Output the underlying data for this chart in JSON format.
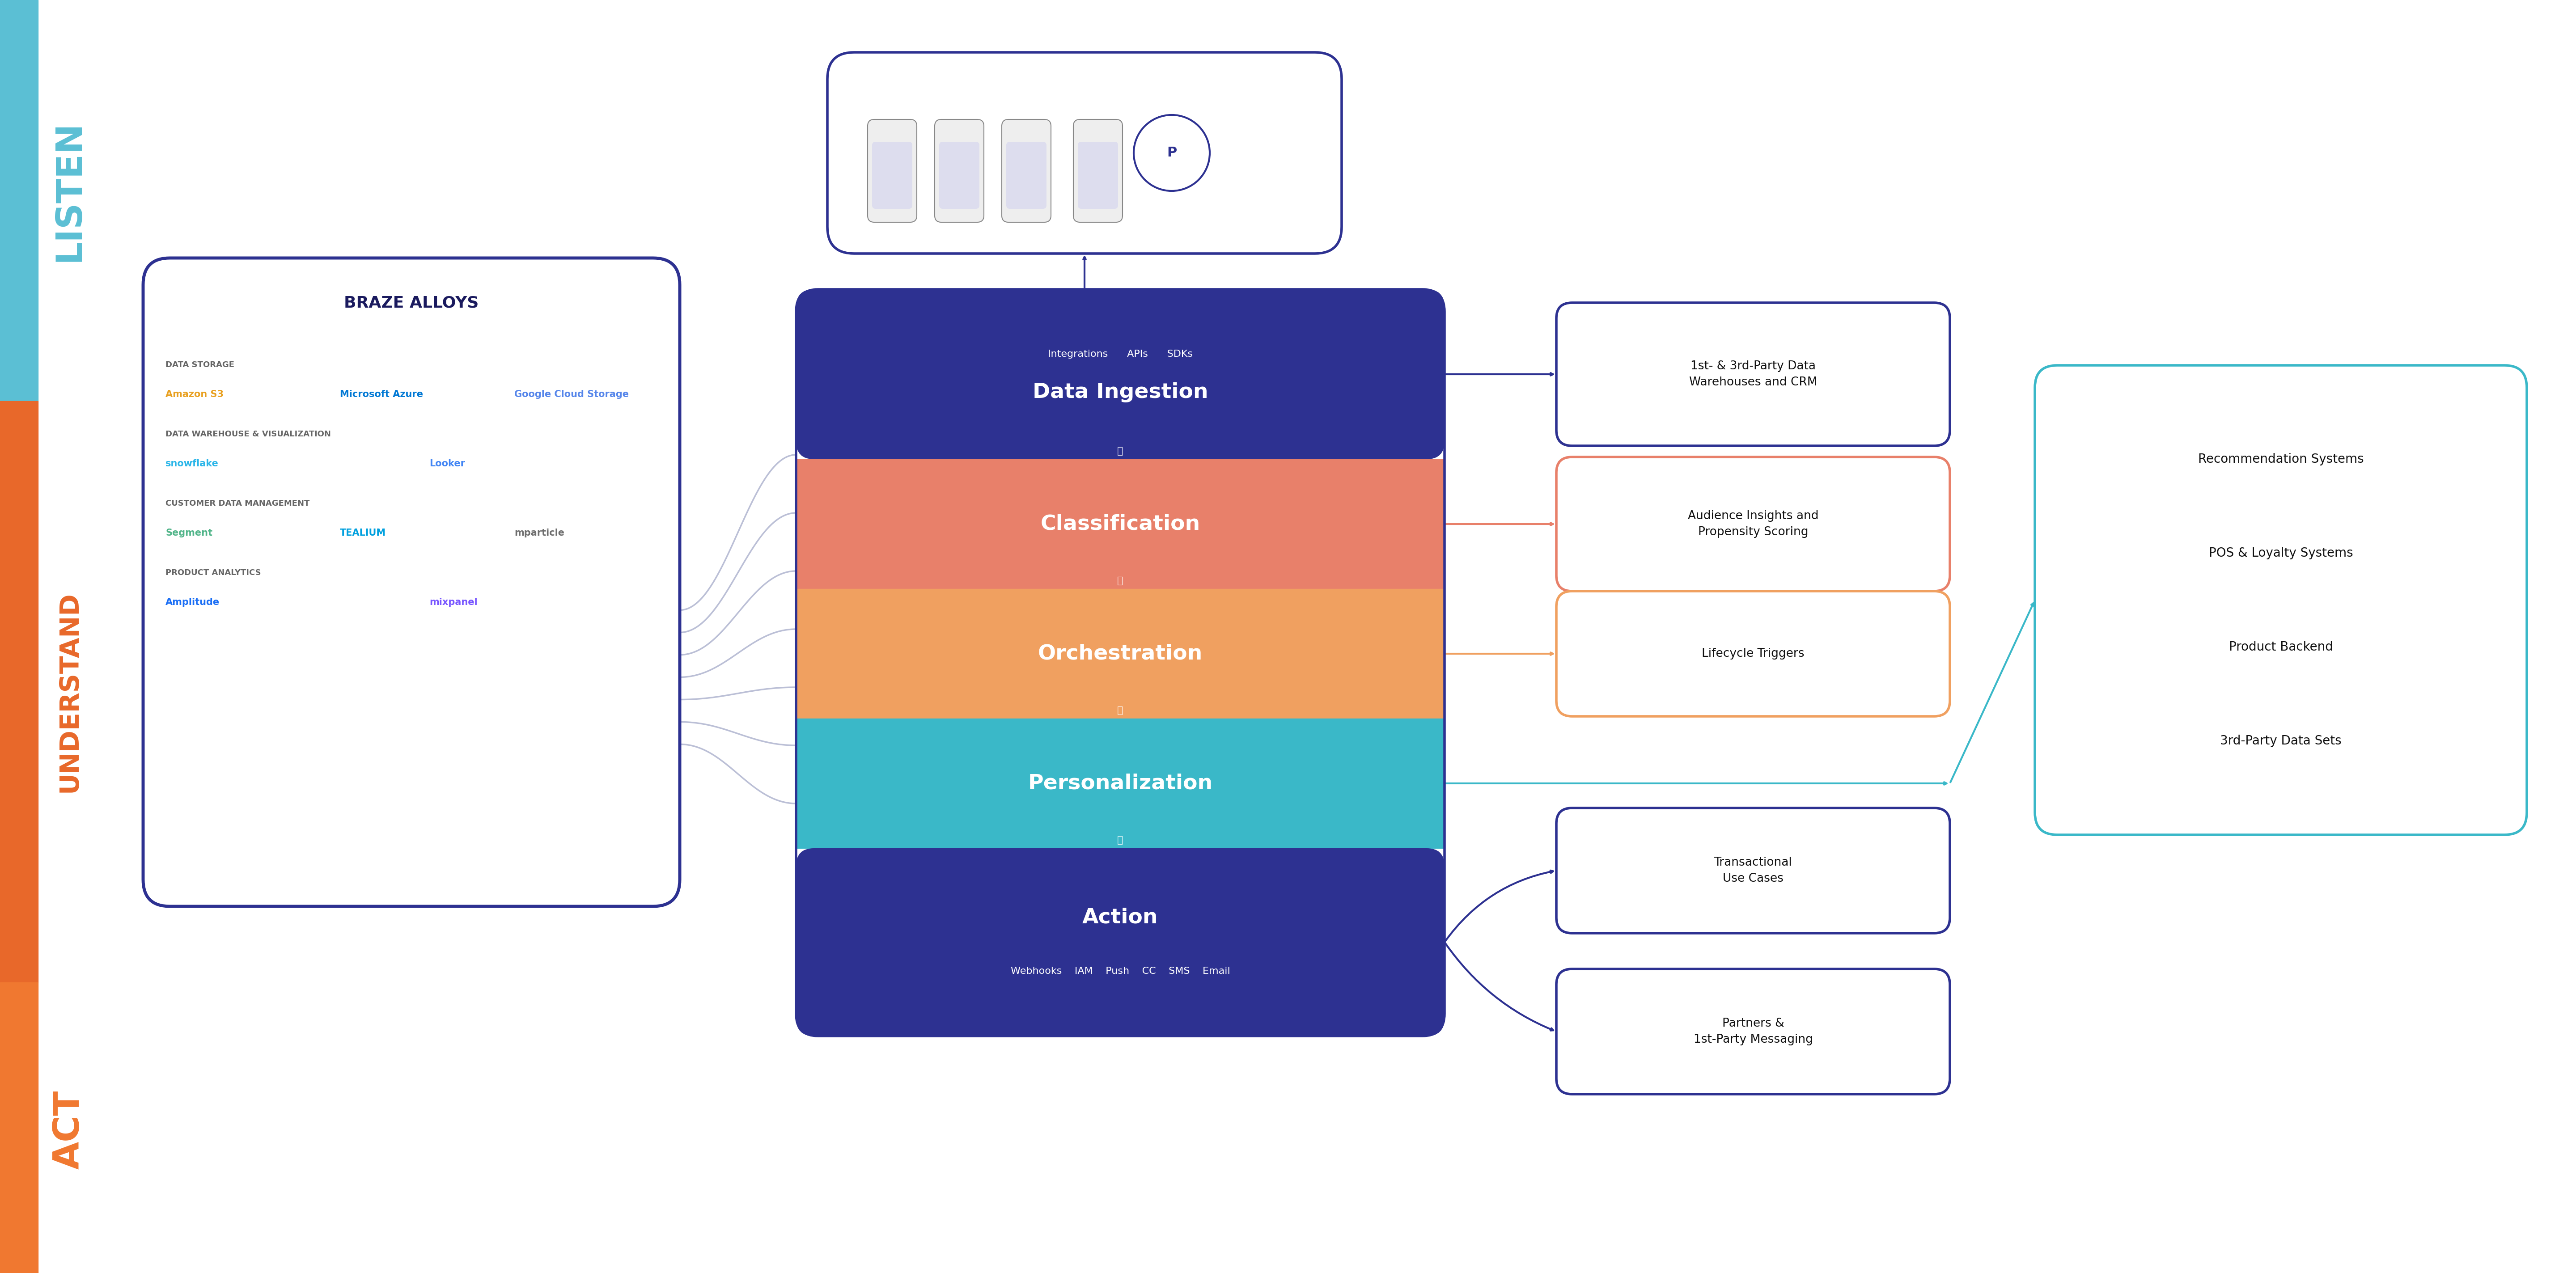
{
  "bg_color": "#ffffff",
  "listen_color": "#5bbfd4",
  "understand_color": "#e8682a",
  "act_color": "#f07830",
  "layer_colors": [
    "#2d3191",
    "#e8806a",
    "#f0a060",
    "#3ab8c8",
    "#2d3191"
  ],
  "layer_names": [
    "Data Ingestion",
    "Classification",
    "Orchestration",
    "Personalization",
    "Action"
  ],
  "layer_sublabels_top": [
    "Integrations      APIs      SDKs",
    "",
    "",
    "",
    ""
  ],
  "layer_sublabels_bottom": [
    "",
    "",
    "",
    "",
    "Webhooks    IAM    Push    CC    SMS    Email"
  ],
  "right_box_texts": [
    "1st- & 3rd-Party Data\nWarehouses and CRM",
    "Audience Insights and\nPropensity Scoring",
    "Lifecycle Triggers",
    "",
    "Transactional\nUse Cases"
  ],
  "right_box_colors": [
    "#2d3191",
    "#e8806a",
    "#f0a060",
    "#3ab8c8",
    "#2d3191"
  ],
  "partners_box_text": "Partners &\n1st-Party Messaging",
  "partners_box_color": "#2d3191",
  "far_right_items": [
    "Recommendation Systems",
    "POS & Loyalty Systems",
    "Product Backend",
    "3rd-Party Data Sets"
  ],
  "far_right_color": "#3ab8c8",
  "alloys_sections": [
    {
      "title": "DATA STORAGE",
      "items": [
        [
          "Amazon\nS3",
          "#e8a020"
        ],
        [
          "Microsoft\nAzure",
          "#0078d4"
        ],
        [
          "Google Cloud Storage",
          "#5585ea"
        ]
      ]
    },
    {
      "title": "DATA WAREHOUSE & VISUALIZATION",
      "items": [
        [
          "snowflake",
          "#29b5e8"
        ],
        [
          "Looker",
          "#4285f4"
        ]
      ]
    },
    {
      "title": "CUSTOMER DATA MANAGEMENT",
      "items": [
        [
          "Segment",
          "#52b58a"
        ],
        [
          "TEALIUM",
          "#00a0de"
        ],
        [
          "mparticle",
          "#6e6e6e"
        ]
      ]
    },
    {
      "title": "PRODUCT ANALYTICS",
      "items": [
        [
          "Amplitude",
          "#1a6ef5"
        ],
        [
          "mixpanel",
          "#7856ff"
        ]
      ]
    }
  ],
  "curve_color": "#aab0cc"
}
